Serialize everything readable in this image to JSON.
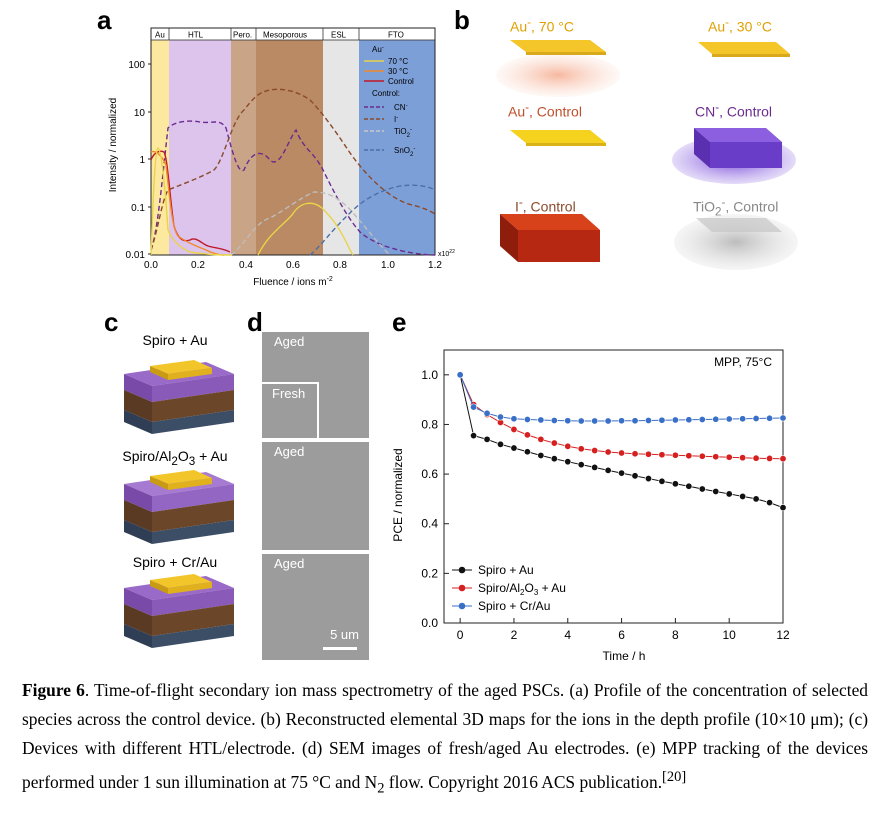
{
  "panels": {
    "a": "a",
    "b": "b",
    "c": "c",
    "d": "d",
    "e": "e"
  },
  "panel_a": {
    "regions": [
      "Au",
      "HTL",
      "Pero.",
      "Mesoporous",
      "ESL",
      "FTO"
    ],
    "ylabel": "Intensity / normalized",
    "xlabel": "Fluence / ions m",
    "xlabel_sup": "-2",
    "x_multiplier": "x10",
    "x_multiplier_sup": "22",
    "yticks": [
      "100",
      "10",
      "1",
      "0.1",
      "0.01"
    ],
    "xticks": [
      "0.0",
      "0.2",
      "0.4",
      "0.6",
      "0.8",
      "1.0",
      "1.2"
    ],
    "legend": {
      "au_header": "Au",
      "au_header_sup": "-",
      "au_items": [
        "70 °C",
        "30 °C",
        "Control"
      ],
      "control_header": "Control:",
      "control_items": [
        "CN",
        "I",
        "TiO",
        "SnO"
      ],
      "control_subs": [
        "",
        "",
        "2",
        "2"
      ],
      "control_sups": [
        "-",
        "-",
        "-",
        "-"
      ]
    },
    "colors": {
      "au70": "#e8d34a",
      "au30": "#f08a2a",
      "control": "#c0182b",
      "cn": "#6b2b8f",
      "i": "#8a4a2a",
      "tio2": "#c8c8c8",
      "sno2": "#4d6fa8"
    }
  },
  "panel_b": {
    "labels": [
      {
        "main": "Au",
        "sup": "-",
        "rest": ", 70 °C",
        "color": "#e0a000"
      },
      {
        "main": "Au",
        "sup": "-",
        "rest": ", 30 °C",
        "color": "#e0a000"
      },
      {
        "main": "Au",
        "sup": "-",
        "rest": ", Control",
        "color": "#c0502b"
      },
      {
        "main": "CN",
        "sup": "-",
        "rest": ", Control",
        "color": "#6b2b8f"
      },
      {
        "main": "I",
        "sup": "-",
        "rest": ", Control",
        "color": "#8a4a2a"
      },
      {
        "main": "TiO",
        "sub": "2",
        "sup": "-",
        "rest": ", Control",
        "color": "#888888"
      }
    ]
  },
  "panel_c": {
    "devices": [
      {
        "label": "Spiro + Au"
      },
      {
        "label_pre": "Spiro/Al",
        "sub1": "2",
        "mid": "O",
        "sub2": "3",
        "post": " + Au"
      },
      {
        "label": "Spiro + Cr/Au"
      }
    ]
  },
  "panel_d": {
    "tags": [
      "Aged",
      "Fresh",
      "Aged",
      "Aged"
    ],
    "scalebar": "5 um"
  },
  "chart_data": {
    "type": "line",
    "annotation": "MPP, 75°C",
    "xlabel": "Time / h",
    "ylabel": "PCE / normalized",
    "xlim": [
      -0.6,
      12
    ],
    "ylim": [
      0.0,
      1.1
    ],
    "xticks": [
      0,
      2,
      4,
      6,
      8,
      10,
      12
    ],
    "yticks": [
      0.0,
      0.2,
      0.4,
      0.6,
      0.8,
      1.0
    ],
    "grid": false,
    "legend_position": "bottom-left",
    "series": [
      {
        "name": "Spiro + Au",
        "color": "#111111",
        "x": [
          0,
          0.5,
          1,
          1.5,
          2,
          2.5,
          3,
          3.5,
          4,
          4.5,
          5,
          5.5,
          6,
          6.5,
          7,
          7.5,
          8,
          8.5,
          9,
          9.5,
          10,
          10.5,
          11,
          11.5,
          12
        ],
        "y": [
          1.0,
          0.755,
          0.74,
          0.72,
          0.705,
          0.69,
          0.675,
          0.662,
          0.65,
          0.638,
          0.627,
          0.615,
          0.604,
          0.593,
          0.582,
          0.571,
          0.561,
          0.551,
          0.54,
          0.53,
          0.52,
          0.51,
          0.5,
          0.485,
          0.465
        ]
      },
      {
        "name": "Spiro/Al2O3 + Au",
        "name_parts": {
          "pre": "Spiro/Al",
          "sub1": "2",
          "mid": "O",
          "sub2": "3",
          "post": " + Au"
        },
        "color": "#d62020",
        "x": [
          0,
          0.5,
          1,
          1.5,
          2,
          2.5,
          3,
          3.5,
          4,
          4.5,
          5,
          5.5,
          6,
          6.5,
          7,
          7.5,
          8,
          8.5,
          9,
          9.5,
          10,
          10.5,
          11,
          11.5,
          12
        ],
        "y": [
          1.0,
          0.88,
          0.84,
          0.808,
          0.78,
          0.758,
          0.74,
          0.725,
          0.712,
          0.702,
          0.695,
          0.689,
          0.685,
          0.682,
          0.68,
          0.678,
          0.676,
          0.674,
          0.672,
          0.67,
          0.668,
          0.666,
          0.664,
          0.663,
          0.662
        ]
      },
      {
        "name": "Spiro + Cr/Au",
        "color": "#3a6fc8",
        "x": [
          0,
          0.5,
          1,
          1.5,
          2,
          2.5,
          3,
          3.5,
          4,
          4.5,
          5,
          5.5,
          6,
          6.5,
          7,
          7.5,
          8,
          8.5,
          9,
          9.5,
          10,
          10.5,
          11,
          11.5,
          12
        ],
        "y": [
          1.0,
          0.87,
          0.845,
          0.83,
          0.823,
          0.82,
          0.818,
          0.816,
          0.815,
          0.814,
          0.814,
          0.814,
          0.815,
          0.815,
          0.816,
          0.817,
          0.818,
          0.819,
          0.82,
          0.821,
          0.822,
          0.823,
          0.824,
          0.825,
          0.826
        ]
      }
    ]
  },
  "caption": {
    "fig": "Figure 6",
    "text": ". Time-of-flight secondary ion mass spectrometry of the aged PSCs. (a) Profile of the concentration of selected species across the control device. (b) Reconstructed elemental 3D maps for the ions in the depth profile (10×10 μm); (c) Devices with different HTL/electrode. (d) SEM images of fresh/aged Au electrodes. (e) MPP tracking of the devices performed under 1 sun illumination at 75 °C and N",
    "sub": "2",
    "text2": " flow. Copyright 2016 ACS publication.",
    "ref": "[20]"
  }
}
